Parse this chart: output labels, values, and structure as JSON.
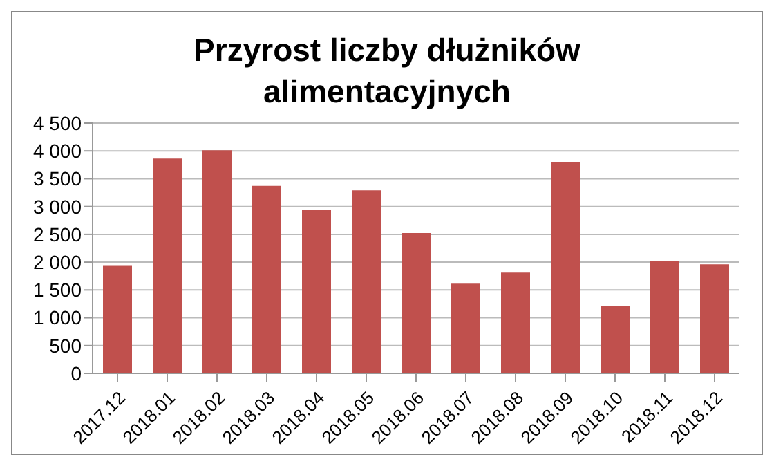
{
  "chart_data": {
    "type": "bar",
    "title": "Przyrost liczby dłużników alimentacyjnych",
    "categories": [
      "2017.12",
      "2018.01",
      "2018.02",
      "2018.03",
      "2018.04",
      "2018.05",
      "2018.06",
      "2018.07",
      "2018.08",
      "2018.09",
      "2018.10",
      "2018.11",
      "2018.12"
    ],
    "values": [
      1920,
      3850,
      4000,
      3360,
      2920,
      3280,
      2510,
      1600,
      1800,
      3790,
      1200,
      2000,
      1950
    ],
    "color": "#c0504d",
    "ylim": [
      0,
      4500
    ],
    "yticks": [
      0,
      500,
      {
        "value": 1000,
        "label": "1 000"
      },
      {
        "value": 1500,
        "label": "1 500"
      },
      {
        "value": 2000,
        "label": "2 000"
      },
      {
        "value": 2500,
        "label": "2 500"
      },
      {
        "value": 3000,
        "label": "3 000"
      },
      {
        "value": 3500,
        "label": "3 500"
      },
      {
        "value": 4000,
        "label": "4 000"
      },
      {
        "value": 4500,
        "label": "4 500"
      }
    ],
    "grid": "y"
  }
}
